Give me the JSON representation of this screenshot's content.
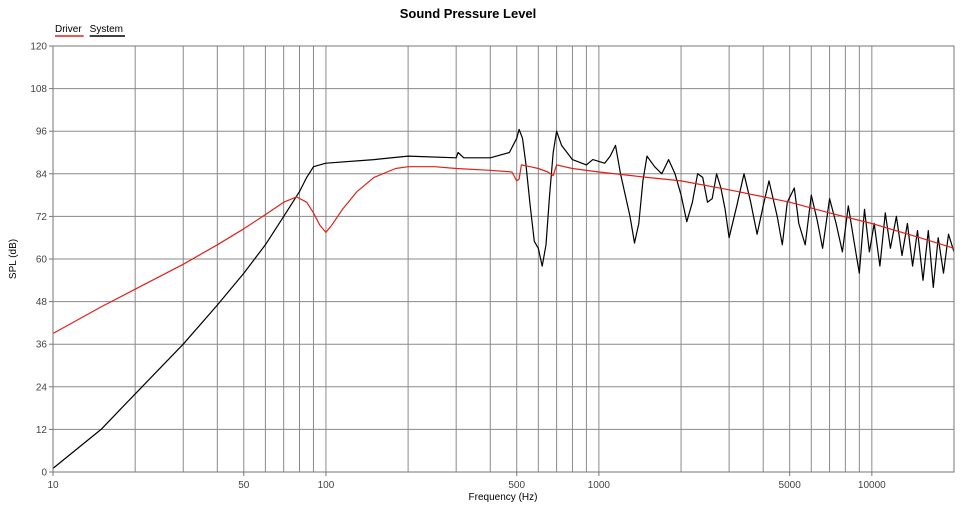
{
  "chart_data": {
    "type": "line",
    "title": "Sound Pressure Level",
    "xlabel": "Frequency (Hz)",
    "ylabel": "SPL (dB)",
    "xscale": "log",
    "xlim": [
      10,
      20000
    ],
    "ylim": [
      0,
      120
    ],
    "grid": true,
    "legend_position": "top-left",
    "yticks": [
      0,
      12,
      24,
      36,
      48,
      60,
      72,
      84,
      96,
      108,
      120
    ],
    "xtick_labels": [
      {
        "value": 10,
        "label": "10"
      },
      {
        "value": 50,
        "label": "50"
      },
      {
        "value": 100,
        "label": "100"
      },
      {
        "value": 500,
        "label": "500"
      },
      {
        "value": 1000,
        "label": "1000"
      },
      {
        "value": 5000,
        "label": "5000"
      },
      {
        "value": 10000,
        "label": "10000"
      }
    ],
    "series": [
      {
        "name": "Driver",
        "color": "#e0201b",
        "points": [
          [
            10,
            39
          ],
          [
            15,
            46.5
          ],
          [
            20,
            51.5
          ],
          [
            30,
            58.5
          ],
          [
            40,
            64
          ],
          [
            50,
            68.5
          ],
          [
            60,
            72.5
          ],
          [
            70,
            76
          ],
          [
            78,
            77.5
          ],
          [
            85,
            76
          ],
          [
            90,
            73
          ],
          [
            95,
            69.5
          ],
          [
            100,
            67.5
          ],
          [
            105,
            69.5
          ],
          [
            115,
            74
          ],
          [
            130,
            79
          ],
          [
            150,
            83
          ],
          [
            180,
            85.5
          ],
          [
            200,
            86
          ],
          [
            250,
            86
          ],
          [
            300,
            85.5
          ],
          [
            400,
            85
          ],
          [
            480,
            84.5
          ],
          [
            500,
            82
          ],
          [
            510,
            82.5
          ],
          [
            520,
            86.5
          ],
          [
            560,
            86
          ],
          [
            600,
            85.5
          ],
          [
            650,
            84.5
          ],
          [
            680,
            83.5
          ],
          [
            700,
            86.5
          ],
          [
            800,
            85.5
          ],
          [
            1000,
            84.5
          ],
          [
            1500,
            83
          ],
          [
            2000,
            82
          ],
          [
            3000,
            79.5
          ],
          [
            5000,
            76
          ],
          [
            7000,
            73
          ],
          [
            10000,
            70
          ],
          [
            15000,
            66
          ],
          [
            20000,
            63
          ]
        ]
      },
      {
        "name": "System",
        "color": "#000000",
        "points": [
          [
            10,
            1
          ],
          [
            15,
            12
          ],
          [
            20,
            22
          ],
          [
            30,
            36
          ],
          [
            40,
            47
          ],
          [
            50,
            56
          ],
          [
            60,
            64
          ],
          [
            70,
            72
          ],
          [
            80,
            79
          ],
          [
            85,
            83
          ],
          [
            90,
            86
          ],
          [
            100,
            87
          ],
          [
            150,
            88
          ],
          [
            200,
            89
          ],
          [
            300,
            88.5
          ],
          [
            305,
            90
          ],
          [
            320,
            88.5
          ],
          [
            400,
            88.5
          ],
          [
            470,
            90
          ],
          [
            500,
            94
          ],
          [
            510,
            96.5
          ],
          [
            525,
            94
          ],
          [
            540,
            87
          ],
          [
            560,
            75
          ],
          [
            580,
            65
          ],
          [
            600,
            63
          ],
          [
            620,
            58
          ],
          [
            640,
            64
          ],
          [
            660,
            78
          ],
          [
            680,
            90
          ],
          [
            700,
            96
          ],
          [
            730,
            92
          ],
          [
            800,
            88
          ],
          [
            900,
            86.5
          ],
          [
            950,
            88
          ],
          [
            1000,
            87.5
          ],
          [
            1050,
            87
          ],
          [
            1100,
            89
          ],
          [
            1150,
            92
          ],
          [
            1200,
            84
          ],
          [
            1300,
            72
          ],
          [
            1350,
            64.5
          ],
          [
            1400,
            70
          ],
          [
            1450,
            82
          ],
          [
            1500,
            89
          ],
          [
            1600,
            86
          ],
          [
            1700,
            84
          ],
          [
            1800,
            88
          ],
          [
            1900,
            84
          ],
          [
            2000,
            78
          ],
          [
            2100,
            70.5
          ],
          [
            2200,
            76
          ],
          [
            2300,
            84
          ],
          [
            2400,
            83
          ],
          [
            2500,
            76
          ],
          [
            2600,
            77
          ],
          [
            2700,
            84
          ],
          [
            2800,
            80
          ],
          [
            2900,
            74
          ],
          [
            3000,
            66
          ],
          [
            3200,
            75
          ],
          [
            3400,
            84
          ],
          [
            3600,
            76
          ],
          [
            3800,
            67
          ],
          [
            4000,
            75
          ],
          [
            4200,
            82
          ],
          [
            4500,
            72
          ],
          [
            4700,
            64
          ],
          [
            4900,
            76
          ],
          [
            5200,
            80
          ],
          [
            5400,
            70
          ],
          [
            5700,
            64
          ],
          [
            6000,
            78
          ],
          [
            6300,
            71
          ],
          [
            6600,
            63
          ],
          [
            7000,
            77
          ],
          [
            7400,
            70
          ],
          [
            7800,
            62
          ],
          [
            8200,
            75
          ],
          [
            8600,
            65
          ],
          [
            9000,
            56
          ],
          [
            9400,
            74
          ],
          [
            9800,
            62
          ],
          [
            10200,
            70
          ],
          [
            10700,
            58
          ],
          [
            11200,
            73
          ],
          [
            11700,
            63
          ],
          [
            12300,
            72
          ],
          [
            12900,
            61
          ],
          [
            13500,
            70
          ],
          [
            14100,
            58
          ],
          [
            14700,
            68
          ],
          [
            15400,
            54
          ],
          [
            16100,
            68
          ],
          [
            16800,
            52
          ],
          [
            17500,
            66
          ],
          [
            18300,
            56
          ],
          [
            19100,
            67
          ],
          [
            20000,
            62
          ]
        ]
      }
    ]
  }
}
